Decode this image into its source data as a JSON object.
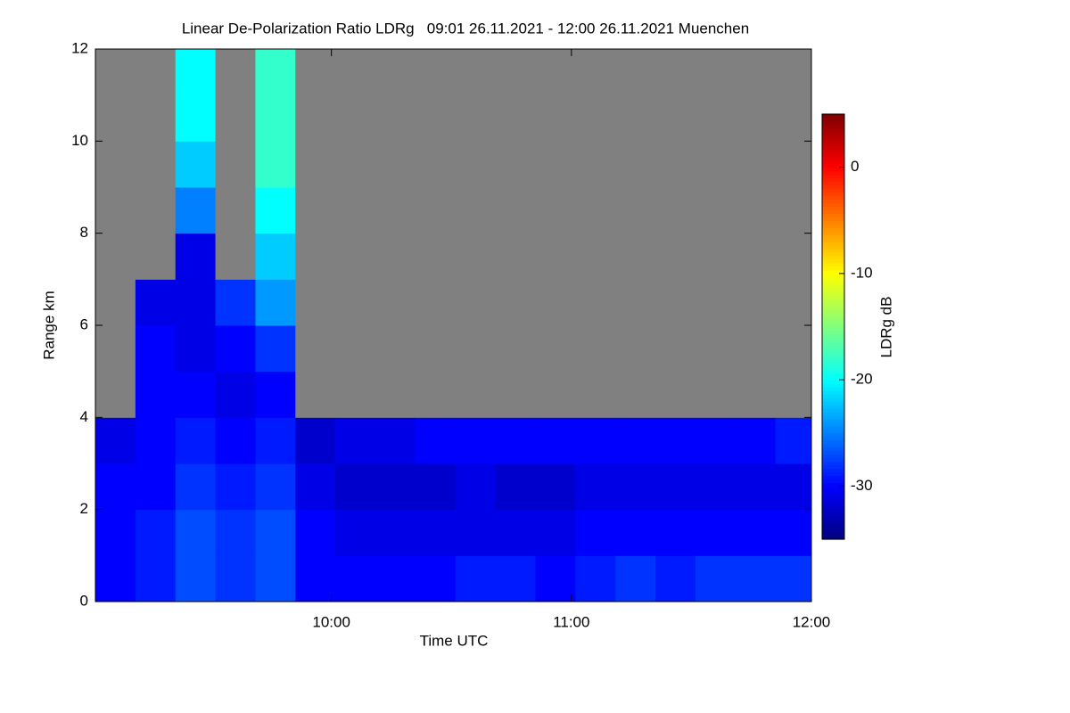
{
  "chart_data": {
    "type": "heatmap",
    "title": "Linear De-Polarization Ratio LDRg   09:01 26.11.2021 - 12:00 26.11.2021 Muenchen",
    "x_label": "Time UTC",
    "y_label": "Range km",
    "colorbar_label": "LDRg dB",
    "x": [
      541,
      551,
      561,
      571,
      581,
      591,
      601,
      611,
      621,
      631,
      641,
      651,
      661,
      671,
      681,
      691,
      701,
      711
    ],
    "y": [
      0,
      1,
      2,
      3,
      4,
      5,
      6,
      7,
      8,
      9,
      10,
      11
    ],
    "xlim": [
      541,
      720
    ],
    "ylim": [
      0,
      12
    ],
    "xticks": [
      {
        "value": 600,
        "label": "10:00"
      },
      {
        "value": 660,
        "label": "11:00"
      },
      {
        "value": 720,
        "label": "12:00"
      }
    ],
    "yticks": [
      0,
      2,
      4,
      6,
      8,
      10,
      12
    ],
    "clim": [
      -35,
      5
    ],
    "cticks": [
      0,
      -10,
      -20,
      -30
    ],
    "colormap": "jet",
    "missing_color": "#808080",
    "values": [
      [
        -30,
        -30,
        -30,
        -31,
        null,
        null,
        null,
        null,
        null,
        null,
        null,
        null
      ],
      [
        -29,
        -29,
        -30,
        -30,
        -30,
        -30,
        -31,
        null,
        null,
        null,
        null,
        null
      ],
      [
        -27,
        -27,
        -28,
        -29,
        -30,
        -31,
        -31,
        -31,
        -25,
        -22,
        -20,
        -20
      ],
      [
        -28,
        -28,
        -29,
        -30,
        -31,
        -30,
        -28,
        null,
        null,
        null,
        null,
        null
      ],
      [
        -27,
        -27,
        -28,
        -29,
        -30,
        -28,
        -24,
        -22,
        -20,
        -18,
        -18,
        -18
      ],
      [
        -30,
        -30,
        -31,
        -32,
        null,
        null,
        null,
        null,
        null,
        null,
        null,
        null
      ],
      [
        -30,
        -31,
        -32,
        -31,
        null,
        null,
        null,
        null,
        null,
        null,
        null,
        null
      ],
      [
        -30,
        -31,
        -32,
        -31,
        null,
        null,
        null,
        null,
        null,
        null,
        null,
        null
      ],
      [
        -30,
        -31,
        -32,
        -30,
        null,
        null,
        null,
        null,
        null,
        null,
        null,
        null
      ],
      [
        -29,
        -31,
        -31,
        -30,
        null,
        null,
        null,
        null,
        null,
        null,
        null,
        null
      ],
      [
        -29,
        -31,
        -32,
        -30,
        null,
        null,
        null,
        null,
        null,
        null,
        null,
        null
      ],
      [
        -30,
        -31,
        -32,
        -30,
        null,
        null,
        null,
        null,
        null,
        null,
        null,
        null
      ],
      [
        -29,
        -30,
        -31,
        -30,
        null,
        null,
        null,
        null,
        null,
        null,
        null,
        null
      ],
      [
        -28,
        -30,
        -31,
        -30,
        null,
        null,
        null,
        null,
        null,
        null,
        null,
        null
      ],
      [
        -29,
        -30,
        -31,
        -30,
        null,
        null,
        null,
        null,
        null,
        null,
        null,
        null
      ],
      [
        -28,
        -30,
        -31,
        -30,
        null,
        null,
        null,
        null,
        null,
        null,
        null,
        null
      ],
      [
        -28,
        -30,
        -31,
        -30,
        null,
        null,
        null,
        null,
        null,
        null,
        null,
        null
      ],
      [
        -28,
        -30,
        -31,
        -29,
        null,
        null,
        null,
        null,
        null,
        null,
        null,
        null
      ]
    ]
  }
}
